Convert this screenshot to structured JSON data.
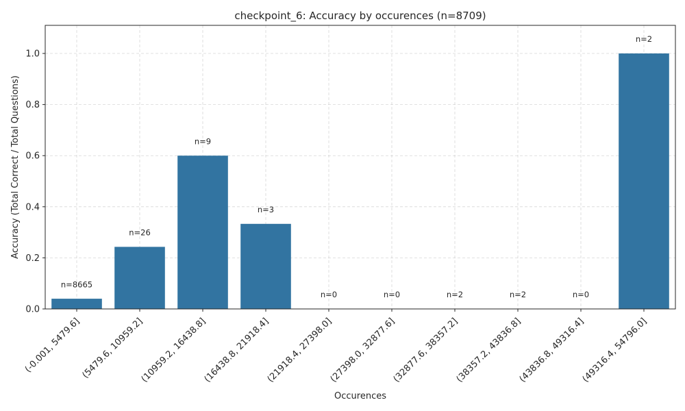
{
  "chart_data": {
    "type": "bar",
    "title": "checkpoint_6: Accuracy by occurences (n=8709)",
    "xlabel": "Occurences",
    "ylabel": "Accuracy (Total Correct / Total Questions)",
    "categories": [
      "(-0.001, 5479.6]",
      "(5479.6, 10959.2]",
      "(10959.2, 16438.8]",
      "(16438.8, 21918.4]",
      "(21918.4, 27398.0]",
      "(27398.0, 32877.6]",
      "(32877.6, 38357.2]",
      "(38357.2, 43836.8]",
      "(43836.8, 49316.4]",
      "(49316.4, 54796.0]"
    ],
    "values": [
      0.04,
      0.243,
      0.6,
      0.333,
      0,
      0,
      0,
      0,
      0,
      1.0
    ],
    "annotations": [
      "n=8665",
      "n=26",
      "n=9",
      "n=3",
      "n=0",
      "n=0",
      "n=2",
      "n=2",
      "n=0",
      "n=2"
    ],
    "ylim": [
      0,
      1.11
    ],
    "yticks": [
      "0.0",
      "0.2",
      "0.4",
      "0.6",
      "0.8",
      "1.0"
    ],
    "ytick_values": [
      0,
      0.2,
      0.4,
      0.6,
      0.8,
      1.0
    ],
    "grid": true,
    "bar_color": "#3274a1"
  }
}
